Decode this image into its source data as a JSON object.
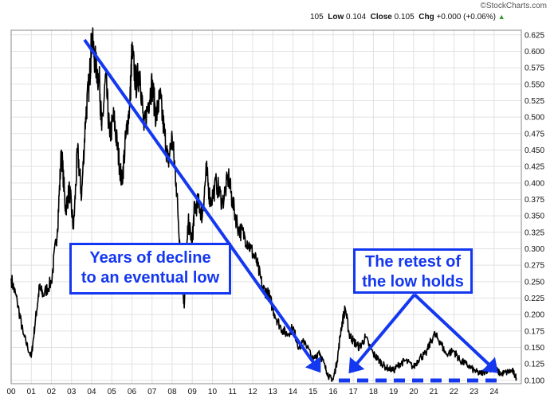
{
  "header": {
    "brand": "StockCharts.com",
    "quote": {
      "last_fragment": "105",
      "low_label": "Low",
      "low_value": "0.104",
      "close_label": "Close",
      "close_value": "0.105",
      "chg_label": "Chg",
      "chg_value": "+0.000 (+0.06%)",
      "chg_icon": "up-triangle-icon"
    }
  },
  "annotations": [
    {
      "lines": [
        "Years of decline",
        "to an eventual low"
      ]
    },
    {
      "lines": [
        "The retest of",
        "the low holds"
      ]
    }
  ],
  "colors": {
    "price_line": "#000000",
    "annotation": "#1437f0",
    "grid": "#e2e2e2",
    "up": "#2a9a2a"
  },
  "chart_data": {
    "type": "line",
    "x_tick_labels": [
      "00",
      "01",
      "02",
      "03",
      "04",
      "05",
      "06",
      "07",
      "08",
      "09",
      "10",
      "11",
      "12",
      "13",
      "14",
      "15",
      "16",
      "17",
      "18",
      "19",
      "20",
      "21",
      "22",
      "23",
      "24"
    ],
    "y_tick_labels": [
      "0.100",
      "0.125",
      "0.150",
      "0.175",
      "0.200",
      "0.225",
      "0.250",
      "0.275",
      "0.300",
      "0.325",
      "0.350",
      "0.375",
      "0.400",
      "0.425",
      "0.450",
      "0.475",
      "0.500",
      "0.525",
      "0.550",
      "0.575",
      "0.600",
      "0.625"
    ],
    "ylim": [
      0.095,
      0.632
    ],
    "xlim": [
      2000.0,
      2025.35
    ],
    "grid": true,
    "y_axis_side": "right",
    "series": [
      {
        "x": [
          2000.0,
          2000.3,
          2000.6,
          2001.0,
          2001.2,
          2001.4,
          2001.6,
          2002.0,
          2002.3,
          2002.5,
          2002.7,
          2002.9,
          2003.1,
          2003.3,
          2003.5,
          2003.7,
          2003.9,
          2004.0,
          2004.2,
          2004.4,
          2004.5,
          2004.7,
          2004.9,
          2005.1,
          2005.3,
          2005.5,
          2005.7,
          2005.9,
          2006.0,
          2006.2,
          2006.4,
          2006.6,
          2006.8,
          2007.0,
          2007.2,
          2007.4,
          2007.6,
          2007.8,
          2008.0,
          2008.2,
          2008.4,
          2008.6,
          2008.8,
          2009.0,
          2009.1,
          2009.3,
          2009.5,
          2009.7,
          2009.9,
          2010.2,
          2010.5,
          2010.8,
          2011.0,
          2011.3,
          2011.6,
          2011.9,
          2012.2,
          2012.5,
          2012.8,
          2013.1,
          2013.4,
          2013.7,
          2014.0,
          2014.3,
          2014.6,
          2015.0,
          2015.3,
          2015.6,
          2015.8,
          2016.0,
          2016.2,
          2016.4,
          2016.6,
          2016.8,
          2017.0,
          2017.3,
          2017.6,
          2018.0,
          2018.3,
          2018.6,
          2019.0,
          2019.3,
          2019.6,
          2020.0,
          2020.3,
          2020.6,
          2021.0,
          2021.3,
          2021.6,
          2022.0,
          2022.3,
          2022.6,
          2023.0,
          2023.3,
          2023.6,
          2024.0,
          2024.3,
          2024.6,
          2024.9,
          2025.1
        ],
        "y": [
          0.255,
          0.22,
          0.17,
          0.135,
          0.19,
          0.24,
          0.23,
          0.25,
          0.33,
          0.45,
          0.36,
          0.39,
          0.33,
          0.45,
          0.38,
          0.5,
          0.56,
          0.62,
          0.58,
          0.55,
          0.48,
          0.56,
          0.47,
          0.5,
          0.45,
          0.4,
          0.47,
          0.52,
          0.6,
          0.55,
          0.57,
          0.48,
          0.52,
          0.55,
          0.5,
          0.53,
          0.48,
          0.43,
          0.47,
          0.4,
          0.3,
          0.21,
          0.34,
          0.31,
          0.36,
          0.37,
          0.35,
          0.42,
          0.37,
          0.4,
          0.37,
          0.41,
          0.37,
          0.33,
          0.32,
          0.3,
          0.28,
          0.24,
          0.23,
          0.2,
          0.18,
          0.17,
          0.18,
          0.15,
          0.16,
          0.13,
          0.145,
          0.12,
          0.105,
          0.101,
          0.13,
          0.18,
          0.21,
          0.17,
          0.16,
          0.15,
          0.165,
          0.14,
          0.13,
          0.12,
          0.115,
          0.125,
          0.13,
          0.12,
          0.135,
          0.14,
          0.17,
          0.16,
          0.14,
          0.145,
          0.13,
          0.125,
          0.115,
          0.11,
          0.115,
          0.12,
          0.11,
          0.112,
          0.115,
          0.104
        ]
      }
    ]
  }
}
